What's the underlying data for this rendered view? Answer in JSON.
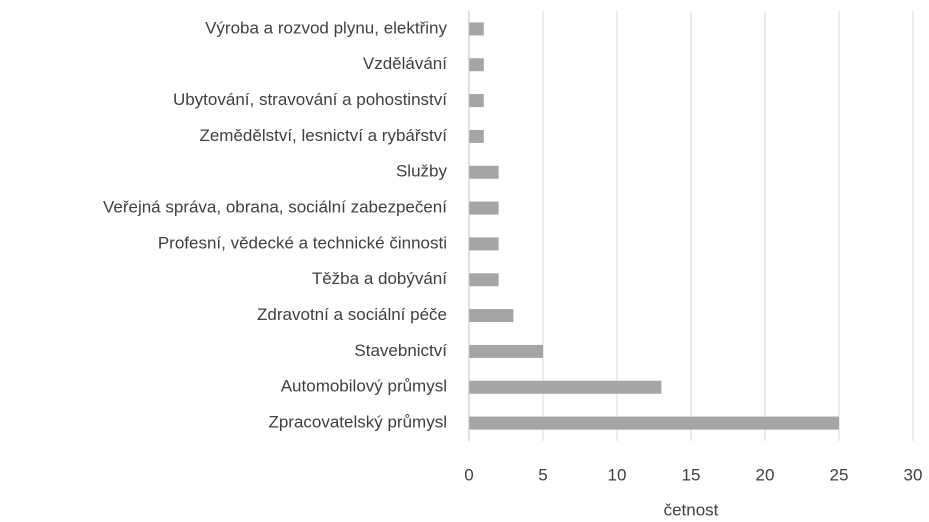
{
  "chart_data": {
    "type": "bar",
    "orientation": "horizontal",
    "x_label": "četnost",
    "categories": [
      "Výroba a rozvod plynu, elektřiny",
      "Vzdělávání",
      "Ubytování, stravování a pohostinství",
      "Zemědělství, lesnictví a rybářství",
      "Služby",
      "Veřejná správa, obrana, sociální zabezpečení",
      "Profesní, vědecké a technické činnosti",
      "Těžba a dobývání",
      "Zdravotní a sociální péče",
      "Stavebnictví",
      "Automobilový průmysl",
      "Zpracovatelský průmysl"
    ],
    "values": [
      1,
      1,
      1,
      1,
      2,
      2,
      2,
      2,
      3,
      5,
      13,
      25
    ],
    "color": "#a5a5a5",
    "xlim": [
      0,
      30
    ],
    "xticks": [
      0,
      5,
      10,
      15,
      20,
      25,
      30
    ],
    "grid": true
  }
}
